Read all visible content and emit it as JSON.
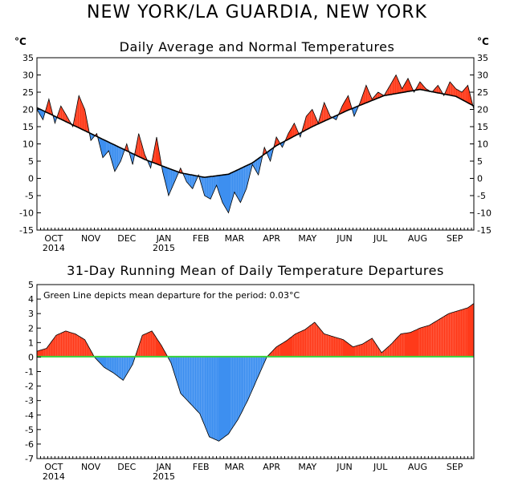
{
  "main_title": "NEW YORK/LA GUARDIA, NEW YORK",
  "colors": {
    "above": "#ff3a1a",
    "below": "#3d8ff0",
    "mean_line": "#39d23a",
    "line": "#000000"
  },
  "chart_data": [
    {
      "type": "area",
      "title": "Daily Average and Normal Temperatures",
      "unit_left": "°C",
      "unit_right": "°C",
      "xlabel": "",
      "ylabel": "",
      "ylim": [
        -15,
        35
      ],
      "yticks": [
        -15,
        -10,
        -5,
        0,
        5,
        10,
        15,
        20,
        25,
        30,
        35
      ],
      "x_range_days": [
        0,
        365
      ],
      "month_ticks": [
        {
          "day": 14,
          "label": "OCT",
          "year": "2014"
        },
        {
          "day": 45,
          "label": "NOV",
          "year": ""
        },
        {
          "day": 75,
          "label": "DEC",
          "year": ""
        },
        {
          "day": 106,
          "label": "JAN",
          "year": "2015"
        },
        {
          "day": 137,
          "label": "FEB",
          "year": ""
        },
        {
          "day": 165,
          "label": "MAR",
          "year": ""
        },
        {
          "day": 196,
          "label": "APR",
          "year": ""
        },
        {
          "day": 226,
          "label": "MAY",
          "year": ""
        },
        {
          "day": 257,
          "label": "JUN",
          "year": ""
        },
        {
          "day": 287,
          "label": "JUL",
          "year": ""
        },
        {
          "day": 318,
          "label": "AUG",
          "year": ""
        },
        {
          "day": 349,
          "label": "SEP",
          "year": ""
        }
      ],
      "series": [
        {
          "name": "Normal",
          "x": [
            0,
            30,
            60,
            90,
            120,
            140,
            160,
            180,
            200,
            230,
            260,
            290,
            320,
            350,
            365
          ],
          "values": [
            20.5,
            15.5,
            10.5,
            5.5,
            1.6,
            0.3,
            1.2,
            4.5,
            9.5,
            15.0,
            19.8,
            24.0,
            25.8,
            23.8,
            21.0
          ]
        },
        {
          "name": "Daily Average",
          "x": [
            0,
            5,
            10,
            15,
            20,
            25,
            30,
            35,
            40,
            45,
            50,
            55,
            60,
            65,
            70,
            75,
            80,
            85,
            90,
            95,
            100,
            105,
            110,
            115,
            120,
            125,
            130,
            135,
            140,
            145,
            150,
            155,
            160,
            165,
            170,
            175,
            180,
            185,
            190,
            195,
            200,
            205,
            210,
            215,
            220,
            225,
            230,
            235,
            240,
            245,
            250,
            255,
            260,
            265,
            270,
            275,
            280,
            285,
            290,
            295,
            300,
            305,
            310,
            315,
            320,
            325,
            330,
            335,
            340,
            345,
            350,
            355,
            360,
            365
          ],
          "values": [
            20,
            17,
            23,
            16,
            21,
            18,
            15,
            24,
            20,
            11,
            13,
            6,
            8,
            2,
            5,
            10,
            4,
            13,
            7,
            3,
            12,
            2,
            -5,
            -1,
            3,
            -1,
            -3,
            1,
            -5,
            -6,
            -2,
            -7,
            -10,
            -4,
            -7,
            -3,
            4,
            1,
            9,
            5,
            12,
            9,
            13,
            16,
            12,
            18,
            20,
            16,
            22,
            18,
            17,
            21,
            24,
            18,
            22,
            27,
            23,
            25,
            24,
            27,
            30,
            26,
            29,
            25,
            28,
            26,
            25,
            27,
            24,
            28,
            26,
            25,
            27,
            20
          ]
        }
      ]
    },
    {
      "type": "area",
      "title": "31-Day Running Mean of Daily Temperature Departures",
      "annotation": "Green Line depicts mean departure for the period: 0.03°C",
      "mean_departure": 0.03,
      "xlabel": "",
      "ylabel": "",
      "ylim": [
        -7,
        5
      ],
      "yticks": [
        -7,
        -6,
        -5,
        -4,
        -3,
        -2,
        -1,
        0,
        1,
        2,
        3,
        4,
        5
      ],
      "x_range_days": [
        0,
        365
      ],
      "series": [
        {
          "name": "Departure",
          "x": [
            0,
            8,
            16,
            24,
            32,
            40,
            48,
            56,
            64,
            72,
            80,
            88,
            96,
            104,
            112,
            120,
            128,
            136,
            144,
            152,
            160,
            168,
            176,
            184,
            192,
            200,
            208,
            216,
            224,
            232,
            240,
            248,
            256,
            264,
            272,
            280,
            288,
            296,
            304,
            312,
            320,
            328,
            336,
            344,
            352,
            360,
            365
          ],
          "values": [
            0.4,
            0.6,
            1.5,
            1.8,
            1.6,
            1.2,
            0.0,
            -0.7,
            -1.1,
            -1.6,
            -0.5,
            1.5,
            1.8,
            0.8,
            -0.4,
            -2.5,
            -3.2,
            -3.9,
            -5.5,
            -5.8,
            -5.3,
            -4.3,
            -3.0,
            -1.5,
            0.0,
            0.7,
            1.1,
            1.6,
            1.9,
            2.4,
            1.6,
            1.4,
            1.2,
            0.7,
            0.9,
            1.3,
            0.3,
            0.9,
            1.6,
            1.7,
            2.0,
            2.2,
            2.6,
            3.0,
            3.2,
            3.4,
            3.7
          ]
        }
      ]
    }
  ]
}
